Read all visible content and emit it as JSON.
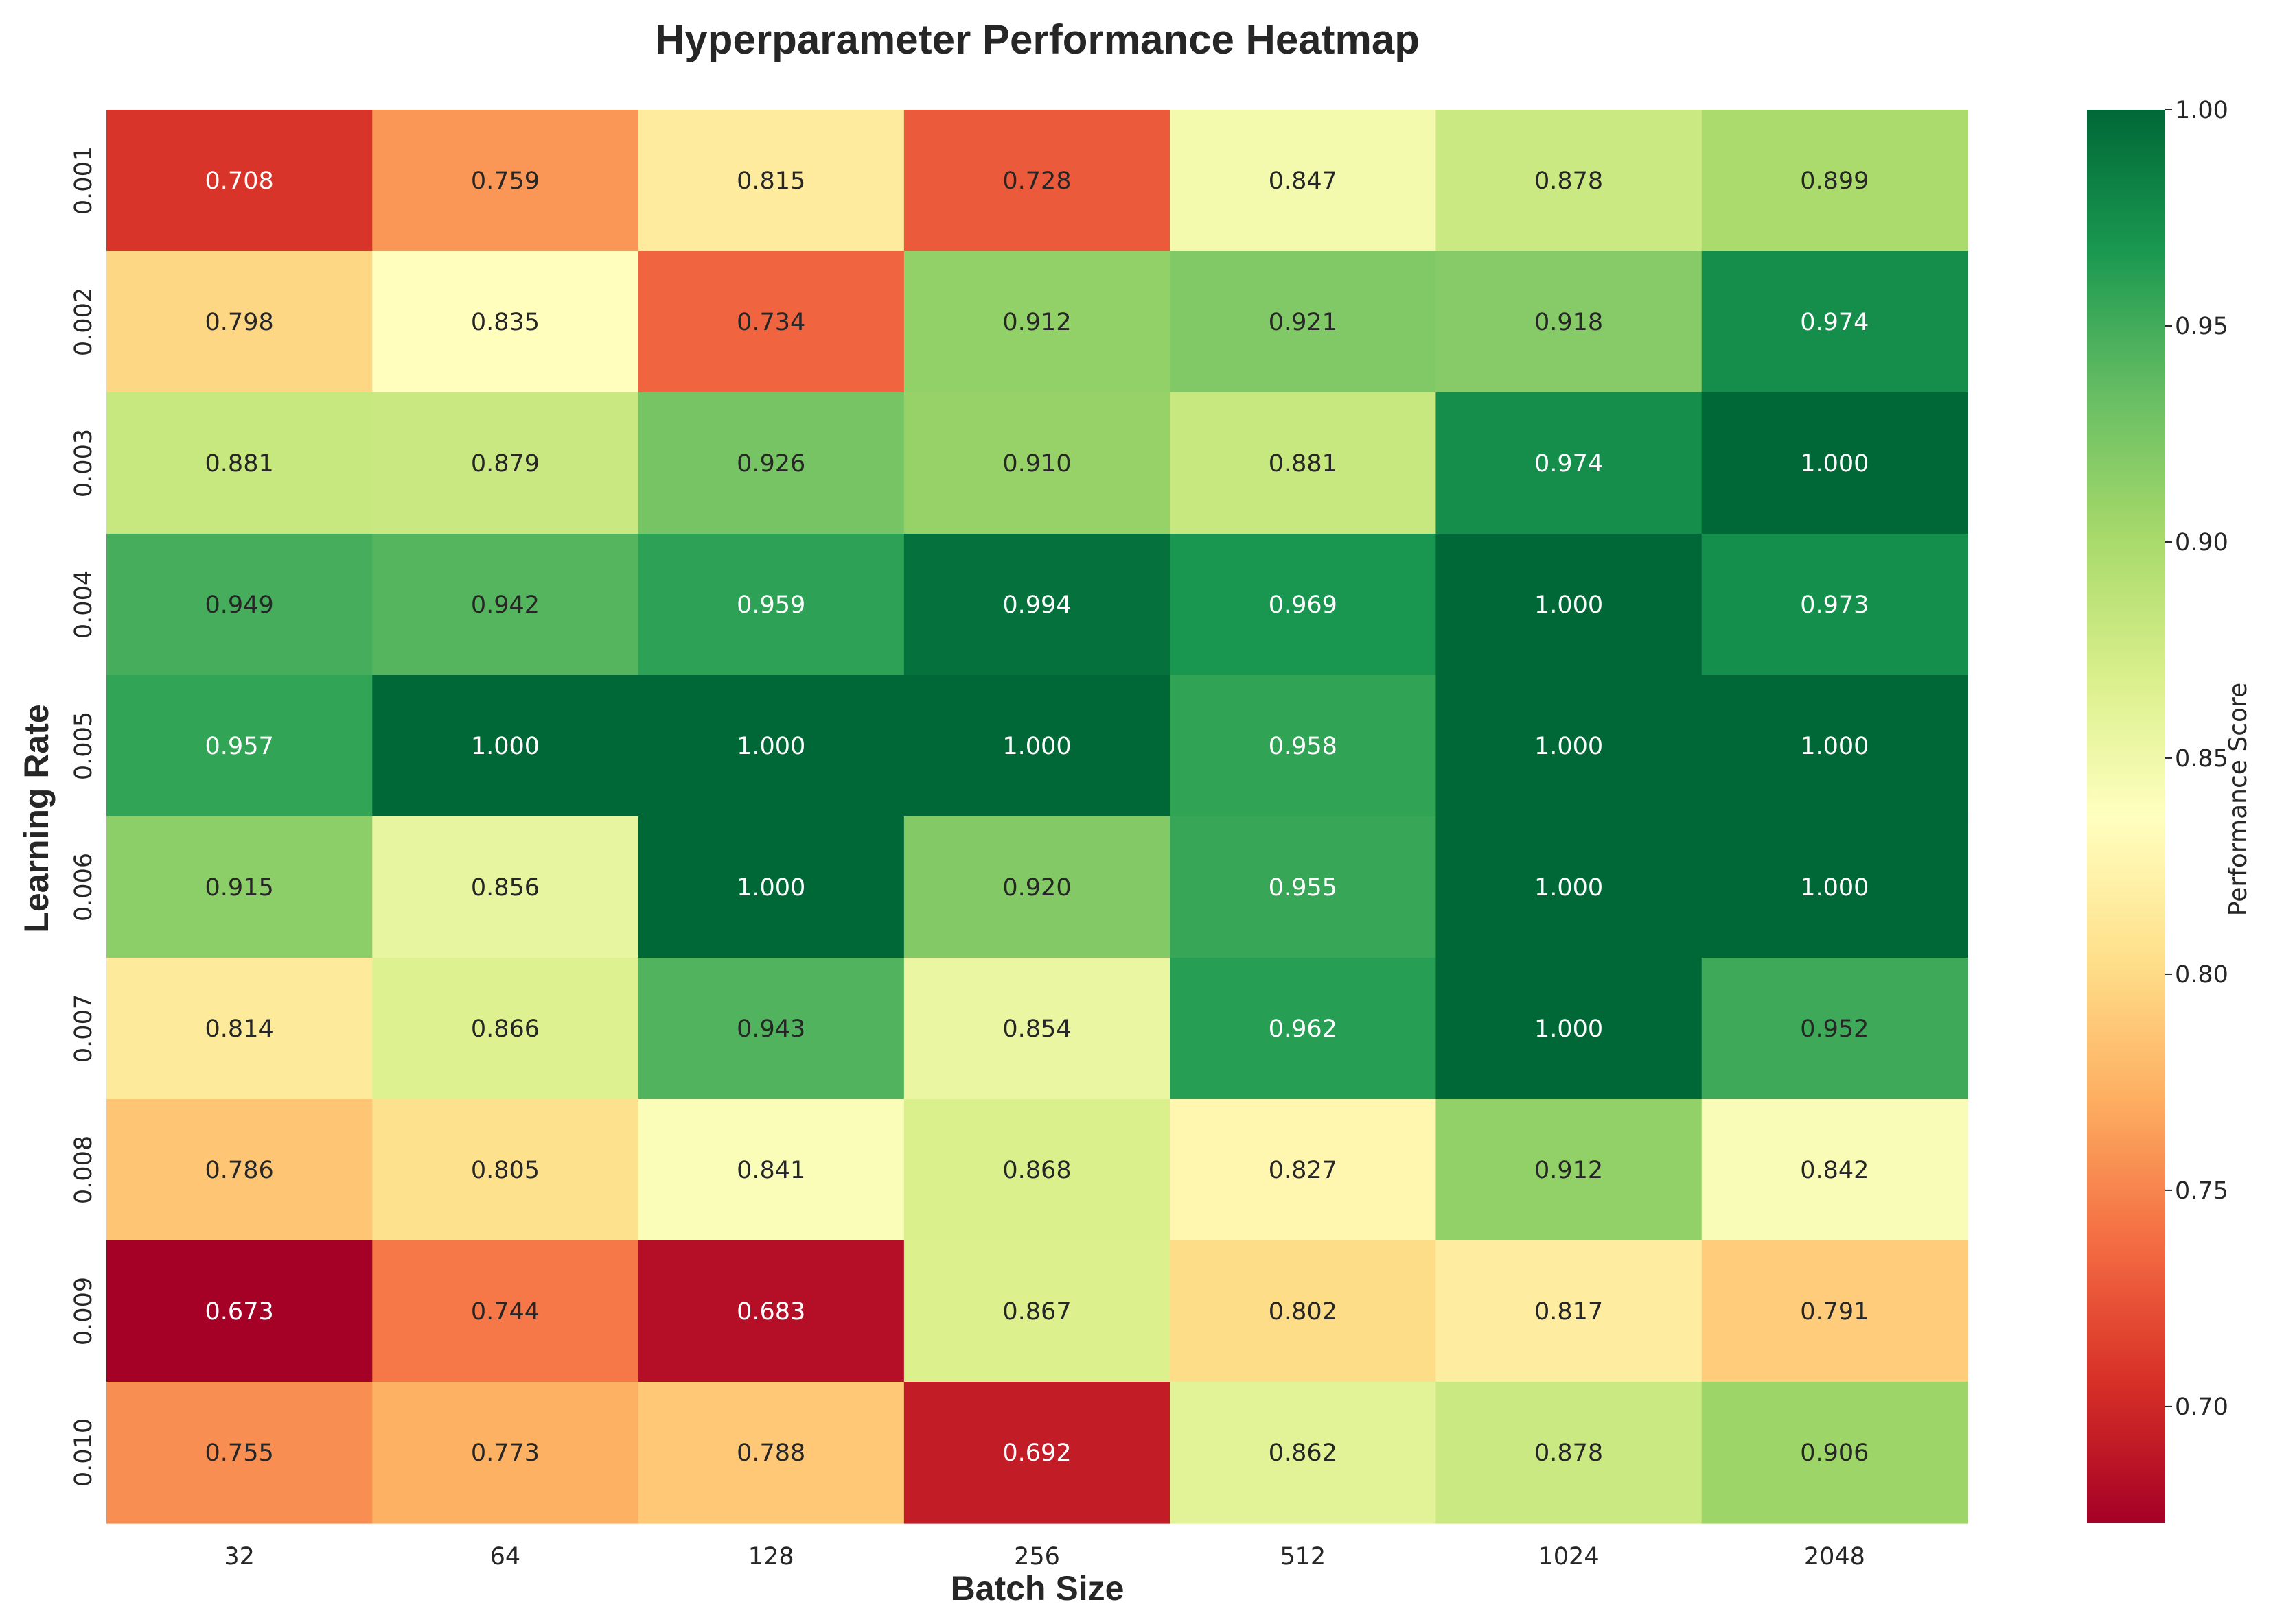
{
  "colors": {
    "text": "#262626",
    "colormap": "RdYlGn",
    "colormap_stops": [
      "#a50026",
      "#d73027",
      "#f46d43",
      "#fdae61",
      "#fee08b",
      "#ffffbf",
      "#d9ef8b",
      "#a6d96a",
      "#66bd63",
      "#1a9850",
      "#006837"
    ]
  },
  "chart_data": {
    "type": "heatmap",
    "title": "Hyperparameter Performance Heatmap",
    "xlabel": "Batch Size",
    "ylabel": "Learning Rate",
    "x": [
      "32",
      "64",
      "128",
      "256",
      "512",
      "1024",
      "2048"
    ],
    "y": [
      "0.001",
      "0.002",
      "0.003",
      "0.004",
      "0.005",
      "0.006",
      "0.007",
      "0.008",
      "0.009",
      "0.010"
    ],
    "values": [
      [
        0.708,
        0.759,
        0.815,
        0.728,
        0.847,
        0.878,
        0.899
      ],
      [
        0.798,
        0.835,
        0.734,
        0.912,
        0.921,
        0.918,
        0.974
      ],
      [
        0.881,
        0.879,
        0.926,
        0.91,
        0.881,
        0.974,
        1.0
      ],
      [
        0.949,
        0.942,
        0.959,
        0.994,
        0.969,
        1.0,
        0.973
      ],
      [
        0.957,
        1.0,
        1.0,
        1.0,
        0.958,
        1.0,
        1.0
      ],
      [
        0.915,
        0.856,
        1.0,
        0.92,
        0.955,
        1.0,
        1.0
      ],
      [
        0.814,
        0.866,
        0.943,
        0.854,
        0.962,
        1.0,
        0.952
      ],
      [
        0.786,
        0.805,
        0.841,
        0.868,
        0.827,
        0.912,
        0.842
      ],
      [
        0.673,
        0.744,
        0.683,
        0.867,
        0.802,
        0.817,
        0.791
      ],
      [
        0.755,
        0.773,
        0.788,
        0.692,
        0.862,
        0.878,
        0.906
      ]
    ],
    "value_format": "0.000",
    "colorbar": {
      "label": "Performance Score",
      "range": [
        0.673,
        1.0
      ],
      "ticks": [
        "0.70",
        "0.75",
        "0.80",
        "0.85",
        "0.90",
        "0.95",
        "1.00"
      ]
    }
  }
}
